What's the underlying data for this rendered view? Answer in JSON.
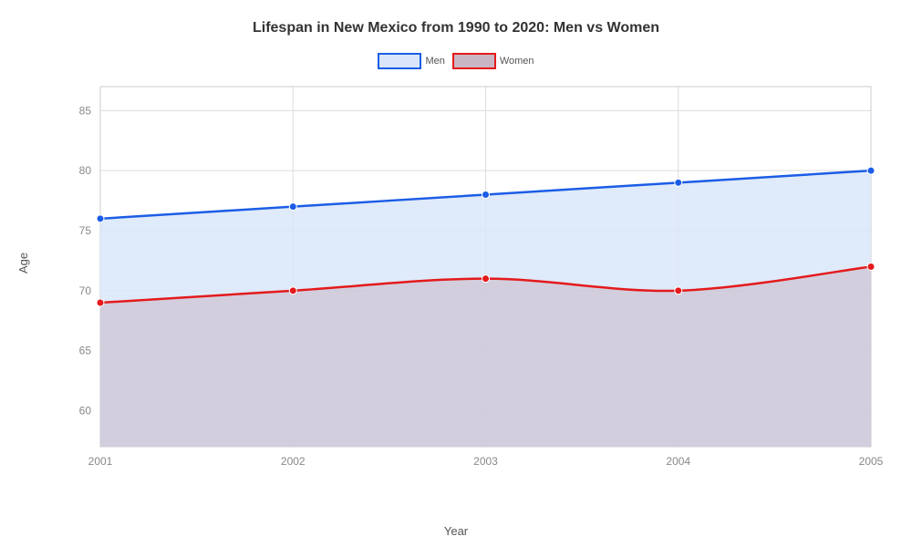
{
  "chart": {
    "type": "line-area",
    "title": "Lifespan in New Mexico from 1990 to 2020: Men vs Women",
    "title_fontsize": 16,
    "title_color": "#333333",
    "xlabel": "Year",
    "ylabel": "Age",
    "label_fontsize": 13,
    "label_color": "#555555",
    "categories": [
      "2001",
      "2002",
      "2003",
      "2004",
      "2005"
    ],
    "ylim": [
      57,
      87
    ],
    "yticks": [
      60,
      65,
      70,
      75,
      80,
      85
    ],
    "tick_fontsize": 12,
    "tick_color": "#888888",
    "background_color": "#ffffff",
    "grid_color": "#dddddd",
    "plot_border_color": "#cccccc",
    "series": [
      {
        "name": "Men",
        "values": [
          76,
          77,
          78,
          79,
          80
        ],
        "line_color": "#1c5de6",
        "fill_color": "#d9e6f9",
        "fill_opacity": 0.85,
        "marker_fill": "#1c5de6",
        "line_width": 2.5,
        "marker_radius": 4
      },
      {
        "name": "Women",
        "values": [
          69,
          70,
          71,
          70,
          72
        ],
        "line_color": "#e41a1c",
        "fill_color": "#c9b6c4",
        "fill_opacity": 0.55,
        "marker_fill": "#e41a1c",
        "line_width": 2.5,
        "marker_radius": 4
      }
    ],
    "legend": {
      "position": "top-center",
      "swatch_width": 44,
      "swatch_height": 14,
      "font_size": 11
    }
  }
}
